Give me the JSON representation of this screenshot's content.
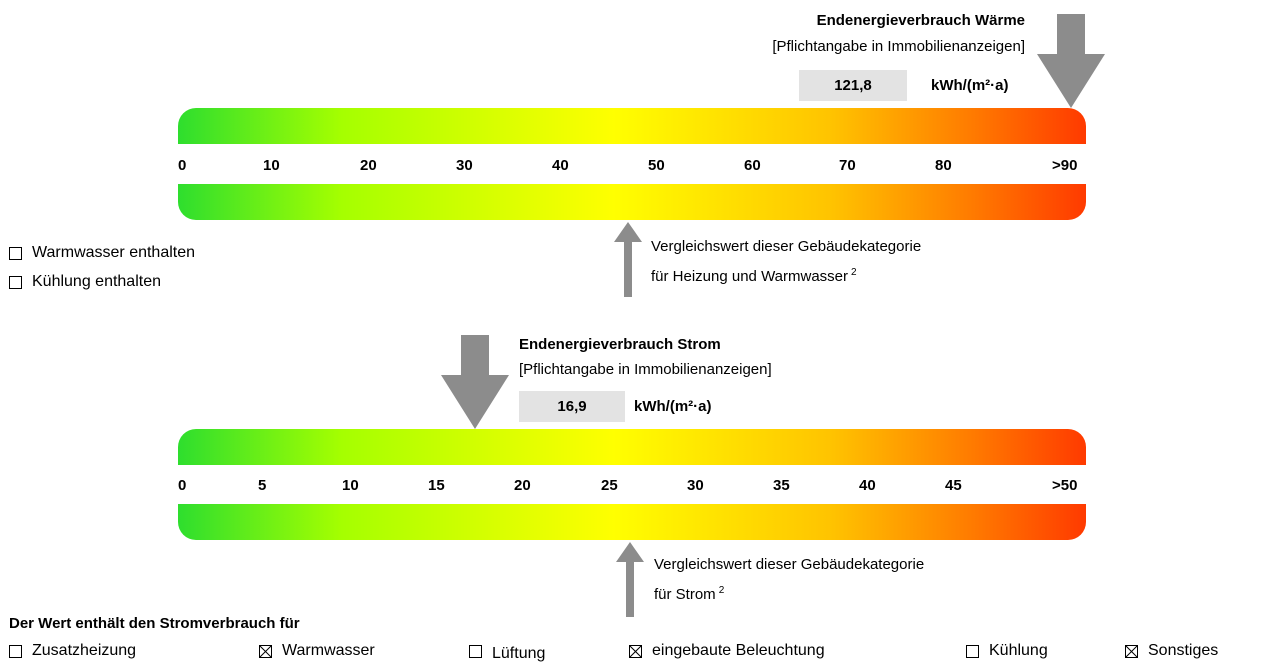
{
  "heat": {
    "title": "Endenergieverbrauch Wärme",
    "subtitle": "[Pflichtangabe in Immobilienanzeigen]",
    "value": "121,8",
    "unit": "kWh/(m²·a)",
    "scale": [
      "0",
      "10",
      "20",
      "30",
      "40",
      "50",
      "60",
      "70",
      "80",
      ">90"
    ],
    "comparison_line1": "Vergleichswert dieser Gebäudekategorie",
    "comparison_line2": "für Heizung und Warmwasser",
    "footnote": "2",
    "checkboxes": [
      {
        "label": "Warmwasser enthalten",
        "checked": false
      },
      {
        "label": "Kühlung enthalten",
        "checked": false
      }
    ]
  },
  "power": {
    "title": "Endenergieverbrauch Strom",
    "subtitle": "[Pflichtangabe in Immobilienanzeigen]",
    "value": "16,9",
    "unit": "kWh/(m²·a)",
    "scale": [
      "0",
      "5",
      "10",
      "15",
      "20",
      "25",
      "30",
      "35",
      "40",
      "45",
      ">50"
    ],
    "comparison_line1": "Vergleichswert dieser Gebäudekategorie",
    "comparison_line2": "für Strom",
    "footnote": "2"
  },
  "consumption": {
    "heading": "Der Wert enthält den Stromverbrauch für",
    "items": [
      {
        "label": "Zusatzheizung",
        "checked": false
      },
      {
        "label": "Warmwasser",
        "checked": true
      },
      {
        "label": "Lüftung",
        "checked": false
      },
      {
        "label": "eingebaute Beleuchtung",
        "checked": true
      },
      {
        "label": "Kühlung",
        "checked": false
      },
      {
        "label": "Sonstiges",
        "checked": true
      }
    ]
  },
  "colors": {
    "arrow": "#8c8c8c",
    "value_box": "#e3e3e3"
  }
}
